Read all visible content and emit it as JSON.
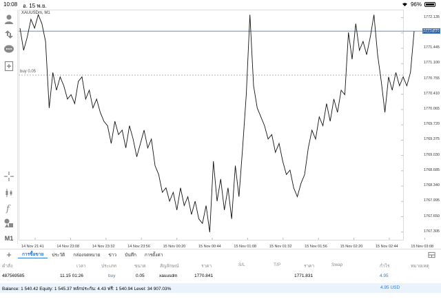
{
  "status_bar": {
    "time": "10:08",
    "date": "อ. 15 พ.ย.",
    "battery_text": "96%",
    "battery_level": 0.96
  },
  "chart": {
    "symbol": "XAUUSDm, M1",
    "buy_label": "buy 0.05",
    "current_price": "1771.831",
    "y_ticks": [
      "1772.135",
      "1771.790",
      "1771.445",
      "1771.100",
      "1770.755",
      "1770.410",
      "1770.065",
      "1769.720",
      "1769.375",
      "1769.030",
      "1768.685",
      "1768.340",
      "1767.995",
      "1767.650",
      "1767.305"
    ],
    "x_ticks": [
      "14 Nov 21:41",
      "14 Nov 23:08",
      "14 Nov 23:32",
      "14 Nov 23:56",
      "15 Nov 00:20",
      "15 Nov 00:44",
      "15 Nov 01:08",
      "15 Nov 01:32",
      "15 Nov 01:56",
      "15 Nov 02:20",
      "15 Nov 02:44",
      "15 Nov 03:08"
    ]
  },
  "chart_data": {
    "type": "line",
    "title": "XAUUSDm, M1",
    "xlabel": "",
    "ylabel": "",
    "ylim": [
      1767.13,
      1772.3
    ],
    "grid": false,
    "series": [
      {
        "values": [
          1771.9,
          1771.4,
          1771.7,
          1772.1,
          1771.9,
          1772.2,
          1772.0,
          1771.6,
          1770.1,
          1770.9,
          1770.5,
          1770.8,
          1770.6,
          1770.3,
          1770.4,
          1770.2,
          1770.7,
          1770.8,
          1770.3,
          1770.5,
          1770.1,
          1770.3,
          1770.0,
          1769.8,
          1769.7,
          1769.3,
          1769.8,
          1769.5,
          1769.6,
          1769.2,
          1769.7,
          1769.4,
          1769.0,
          1769.3,
          1769.6,
          1769.2,
          1769.4,
          1768.8,
          1768.6,
          1768.2,
          1768.3,
          1768.0,
          1768.2,
          1767.8,
          1768.3,
          1767.9,
          1768.1,
          1767.7,
          1768.0,
          1767.6,
          1767.5,
          1767.9,
          1767.3,
          1768.9,
          1768.0,
          1768.5,
          1767.8,
          1768.3,
          1767.6,
          1768.8,
          1768.1,
          1769.2,
          1770.4,
          1772.2,
          1770.6,
          1770.1,
          1769.9,
          1769.7,
          1769.4,
          1769.5,
          1769.1,
          1769.3,
          1768.9,
          1768.6,
          1768.7,
          1768.3,
          1768.1,
          1768.4,
          1768.6,
          1769.2,
          1769.6,
          1769.4,
          1769.9,
          1769.7,
          1770.2,
          1769.8,
          1770.3,
          1770.0,
          1770.5,
          1770.4,
          1771.8,
          1771.2,
          1772.0,
          1771.4,
          1771.6,
          1771.3,
          1771.7,
          1772.2,
          1771.3,
          1770.7,
          1770.0,
          1770.8,
          1770.5,
          1770.9,
          1770.6,
          1770.8,
          1770.6,
          1770.9,
          1771.83
        ]
      }
    ]
  },
  "tabs": [
    "การซื้อขาย",
    "ประวัติ",
    "กล่องจดหมาย",
    "ข่าว",
    "บันทึก",
    "การตั้งค่า"
  ],
  "table": {
    "headers": [
      "คำสั่ง",
      "เวลา",
      "ประเภท",
      "ขนาด",
      "สัญลักษณ์",
      "ราคา",
      "S/L",
      "T/P",
      "ราคา",
      "Swap",
      "กำไร",
      "หมายเหตุ"
    ],
    "row": {
      "order": "487569585",
      "time": "11.15 01:26",
      "type": "buy",
      "size": "0.05",
      "symbol": "xauusdm",
      "open_price": "1770.841",
      "current_price": "1771.831",
      "profit": "4.95"
    }
  },
  "balance": {
    "text": "Balance: 1 540.42 Equity: 1 545.37 หลักประกัน: 4.43 ฟรี: 1 540.94 Level: 34 907.03%",
    "profit": "4.95  USD"
  },
  "colors": {
    "accent": "#2f7bd8",
    "price_line": "#4a7fc1"
  }
}
